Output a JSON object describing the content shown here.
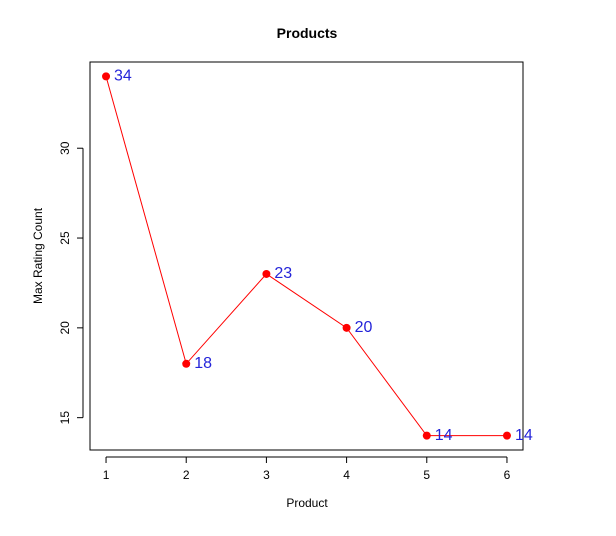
{
  "chart_data": {
    "type": "line",
    "title": "Products",
    "xlabel": "Product",
    "ylabel": "Max Rating Count",
    "x": [
      1,
      2,
      3,
      4,
      5,
      6
    ],
    "series": [
      {
        "values": [
          34,
          18,
          23,
          20,
          14,
          14
        ]
      }
    ],
    "data_labels": [
      "34",
      "18",
      "23",
      "20",
      "14",
      "14"
    ],
    "x_ticks": [
      1,
      2,
      3,
      4,
      5,
      6
    ],
    "y_ticks": [
      15,
      20,
      25,
      30
    ],
    "xlim": [
      0.8,
      6.2
    ],
    "ylim": [
      13.2,
      34.8
    ],
    "grid": false,
    "legend": "none",
    "colors": {
      "line": "#ff0000",
      "points": "#ff0000",
      "labels": "#2424d9",
      "axis": "#000000"
    }
  }
}
